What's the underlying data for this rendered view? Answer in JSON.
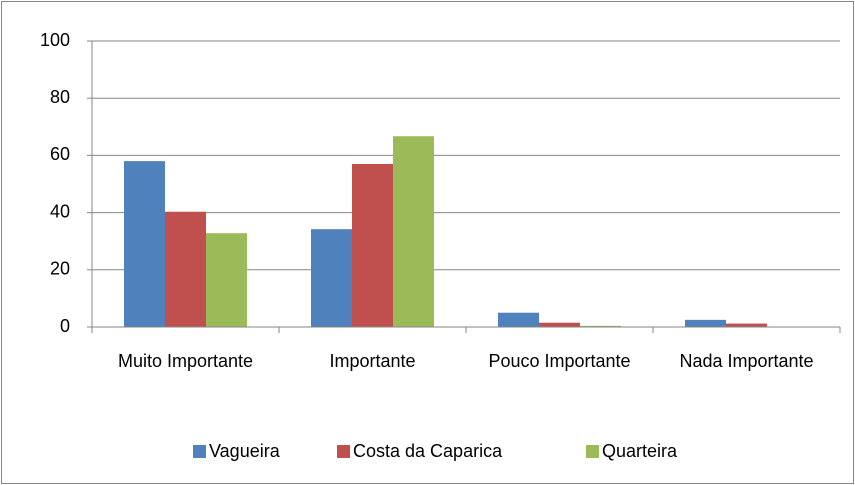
{
  "chart_data": {
    "type": "bar",
    "categories": [
      "Muito Importante",
      "Importante",
      "Pouco Importante",
      "Nada Importante"
    ],
    "series": [
      {
        "name": "Vagueira",
        "color": "#4f81bd",
        "values": [
          58,
          34.2,
          5,
          2.5
        ]
      },
      {
        "name": "Costa da Caparica",
        "color": "#c0504d",
        "values": [
          40.3,
          57,
          1.5,
          1.2
        ]
      },
      {
        "name": "Quarteira",
        "color": "#9bbb59",
        "values": [
          32.8,
          66.7,
          0.4,
          0
        ]
      }
    ],
    "ylim": [
      0,
      100
    ],
    "yticks": [
      0,
      20,
      40,
      60,
      80,
      100
    ],
    "grid": true,
    "legend": "bottom"
  }
}
